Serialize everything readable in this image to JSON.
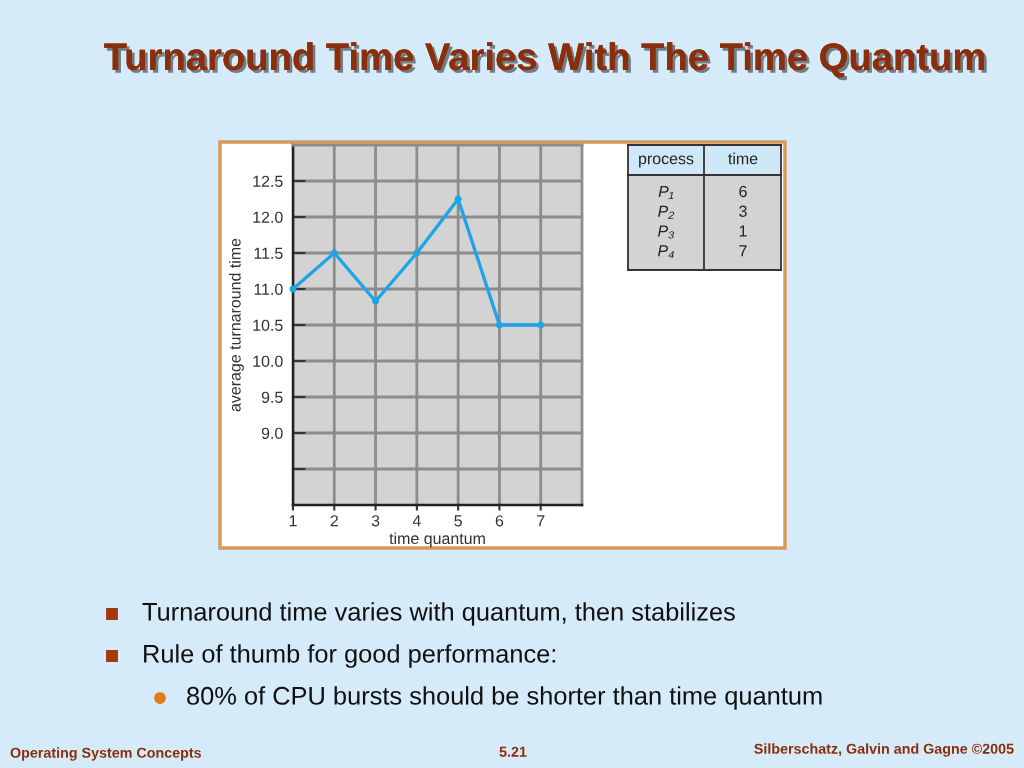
{
  "chart_data": [
    {
      "type": "line",
      "title": "Turnaround Time Varies With The Time Quantum",
      "xlabel": "time quantum",
      "ylabel": "average turnaround time",
      "x": [
        1,
        2,
        3,
        4,
        5,
        6,
        7
      ],
      "values": [
        11.0,
        11.5,
        10.83,
        11.5,
        12.25,
        10.5,
        10.5
      ],
      "color": "#1ea5e6",
      "xlim": [
        1,
        8
      ],
      "xticks": [
        1,
        2,
        3,
        4,
        5,
        6,
        7
      ],
      "ylim": [
        8,
        13
      ],
      "yticks": [
        {
          "value": 8.5,
          "label": null
        },
        {
          "value": 9,
          "label": "9.0"
        },
        9.5,
        {
          "value": 10,
          "label": "10.0"
        },
        10.5,
        {
          "value": 11,
          "label": "11.0"
        },
        11.5,
        {
          "value": 12,
          "label": "12.0"
        },
        12.5
      ],
      "grid": true,
      "marker": "circle",
      "line_style": "solid",
      "annotations": [
        "Turnaround time varies with quantum, then stabilizes",
        "Rule of thumb for good performance:",
        "80% of CPU bursts should be shorter than time quantum",
        "Operating System Concepts",
        "5.21",
        "Silberschatz, Galvin and Gagne ©2005"
      ]
    },
    {
      "type": "other",
      "xlabel": "process",
      "ylabel": "time",
      "categories": [
        "P₁",
        "P₂",
        "P₃",
        "P₄"
      ],
      "values": [
        6,
        3,
        1,
        7
      ],
      "data_labels": true
    }
  ]
}
